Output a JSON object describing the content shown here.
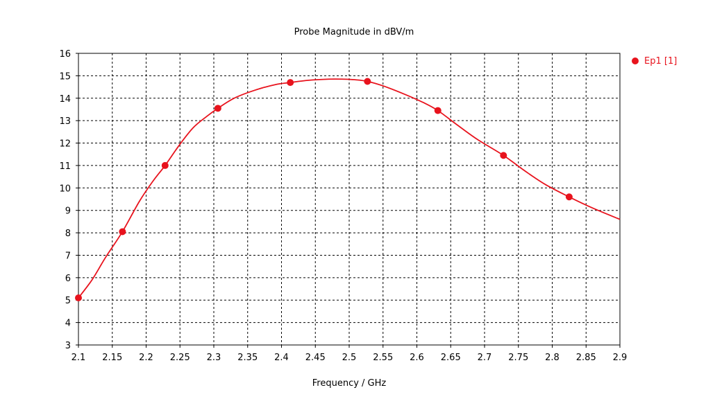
{
  "chart_data": {
    "type": "line",
    "title": "Probe Magnitude in dBV/m",
    "xlabel": "Frequency / GHz",
    "ylabel": "",
    "xlim": [
      2.1,
      2.9
    ],
    "ylim": [
      3,
      16
    ],
    "xticks": [
      2.1,
      2.15,
      2.2,
      2.25,
      2.3,
      2.35,
      2.4,
      2.45,
      2.5,
      2.55,
      2.6,
      2.65,
      2.7,
      2.75,
      2.8,
      2.85,
      2.9
    ],
    "xtick_labels": [
      "2.1",
      "2.15",
      "2.2",
      "2.25",
      "2.3",
      "2.35",
      "2.4",
      "2.45",
      "2.5",
      "2.55",
      "2.6",
      "2.65",
      "2.7",
      "2.75",
      "2.8",
      "2.85",
      "2.9"
    ],
    "yticks": [
      3,
      4,
      5,
      6,
      7,
      8,
      9,
      10,
      11,
      12,
      13,
      14,
      15,
      16
    ],
    "ytick_labels": [
      "3",
      "4",
      "5",
      "6",
      "7",
      "8",
      "9",
      "10",
      "11",
      "12",
      "13",
      "14",
      "15",
      "16"
    ],
    "grid": true,
    "legend_position": "top-right",
    "series": [
      {
        "name": "Ep1 [1]",
        "color": "#e8131d",
        "curve": {
          "x": [
            2.1,
            2.12,
            2.14,
            2.165,
            2.19,
            2.21,
            2.228,
            2.25,
            2.27,
            2.29,
            2.306,
            2.33,
            2.36,
            2.39,
            2.413,
            2.44,
            2.47,
            2.49,
            2.51,
            2.527,
            2.55,
            2.58,
            2.61,
            2.631,
            2.66,
            2.69,
            2.728,
            2.76,
            2.79,
            2.825,
            2.86,
            2.9
          ],
          "y": [
            5.1,
            5.9,
            6.9,
            8.05,
            9.4,
            10.3,
            11.0,
            11.95,
            12.7,
            13.2,
            13.55,
            14.0,
            14.35,
            14.6,
            14.7,
            14.8,
            14.85,
            14.85,
            14.82,
            14.75,
            14.55,
            14.2,
            13.8,
            13.45,
            12.8,
            12.15,
            11.45,
            10.75,
            10.15,
            9.6,
            9.1,
            8.6
          ]
        },
        "markers": {
          "x": [
            2.1,
            2.165,
            2.228,
            2.306,
            2.413,
            2.527,
            2.631,
            2.728,
            2.825
          ],
          "y": [
            5.1,
            8.05,
            11.0,
            13.55,
            14.7,
            14.75,
            13.45,
            11.45,
            9.6
          ]
        }
      }
    ]
  }
}
